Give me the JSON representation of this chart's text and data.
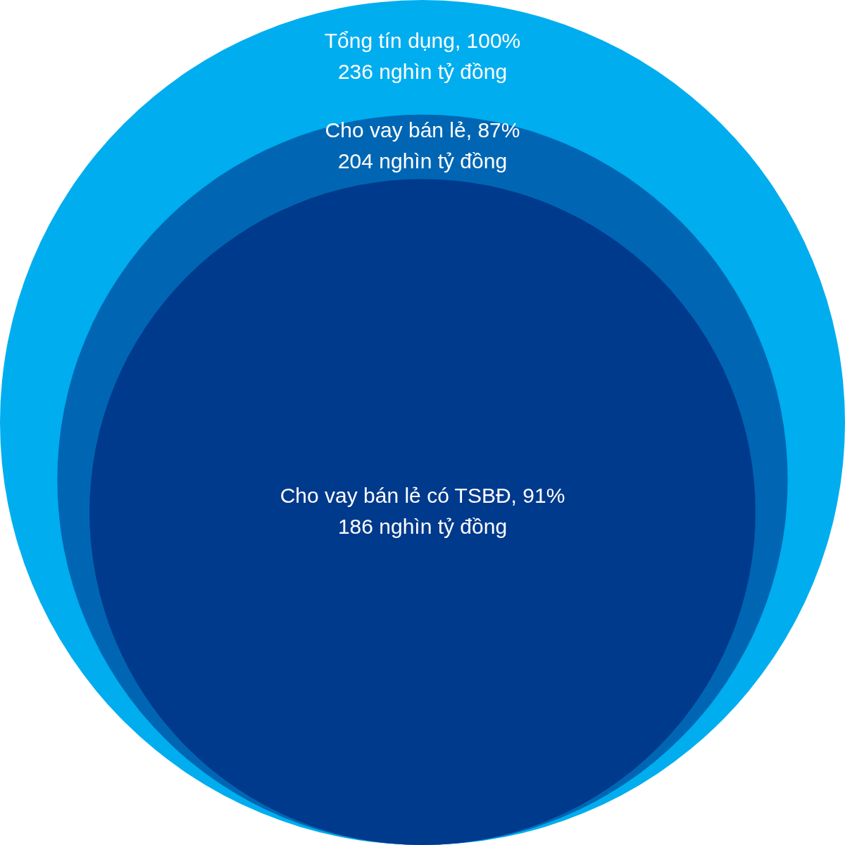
{
  "chart_data": {
    "type": "other",
    "categories": [
      "Tổng tín dụng, 100%",
      "Cho vay bán lẻ, 87%",
      "Cho vay bán lẻ có TSBĐ, 91%"
    ],
    "values": [
      236,
      204,
      186
    ],
    "value_labels": [
      "236 nghìn tỷ đồng",
      "204 nghìn tỷ đồng",
      "186 nghìn tỷ đồng"
    ],
    "colors": [
      "#00adef",
      "#0066b3",
      "#003a8c"
    ]
  }
}
